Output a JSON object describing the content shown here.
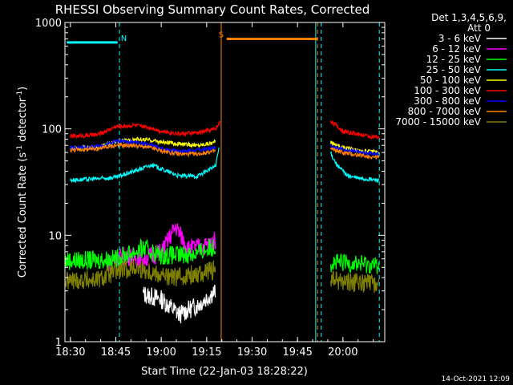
{
  "chart_data": {
    "type": "line",
    "title": "RHESSI Observing Summary Count Rates, Corrected",
    "xlabel": "Start Time (22-Jan-03 18:28:22)",
    "ylabel_main": "Corrected Count Rate (s",
    "ylabel_sup1": "-1",
    "ylabel_mid": " detector",
    "ylabel_sup2": "-1",
    "ylabel_end": ")",
    "yscale": "log",
    "ylim": [
      1,
      1000
    ],
    "xlim": [
      18.47,
      20.23
    ],
    "x_unit": "hours UT",
    "x_ticks": [
      {
        "value": 18.5,
        "label": "18:30"
      },
      {
        "value": 18.75,
        "label": "18:45"
      },
      {
        "value": 19.0,
        "label": "19:00"
      },
      {
        "value": 19.25,
        "label": "19:15"
      },
      {
        "value": 19.5,
        "label": "19:30"
      },
      {
        "value": 19.75,
        "label": "19:45"
      },
      {
        "value": 20.0,
        "label": "20:00"
      }
    ],
    "y_ticks": [
      {
        "value": 1,
        "label": "1"
      },
      {
        "value": 10,
        "label": "10"
      },
      {
        "value": 100,
        "label": "100"
      },
      {
        "value": 1000,
        "label": "1000"
      }
    ],
    "legend": {
      "placement": "right",
      "header1": "Det 1,3,4,5,6,9,",
      "header2": "Att 0"
    },
    "series": [
      {
        "name": "3 - 6 keV",
        "color": "#ffffff",
        "style": "noisy",
        "segments": [
          {
            "x": [
              18.9,
              19.0,
              19.1,
              19.2,
              19.3
            ],
            "y": [
              2.8,
              2.5,
              1.8,
              2.2,
              3.0
            ]
          }
        ]
      },
      {
        "name": "6 - 12 keV",
        "color": "#ff00ff",
        "style": "noisy",
        "segments": [
          {
            "x": [
              18.7,
              18.8,
              18.9,
              19.0,
              19.08,
              19.15,
              19.25,
              19.3
            ],
            "y": [
              5.5,
              6.5,
              6.0,
              7.0,
              12.0,
              7.5,
              8.0,
              9.0
            ]
          }
        ]
      },
      {
        "name": "12 - 25 keV",
        "color": "#00ff00",
        "style": "noisy",
        "segments": [
          {
            "x": [
              18.47,
              18.6,
              18.75,
              18.9,
              19.0,
              19.1,
              19.2,
              19.3
            ],
            "y": [
              5.8,
              5.8,
              6.0,
              7.5,
              6.5,
              6.5,
              6.8,
              8.0
            ]
          },
          {
            "x": [
              19.93,
              20.05,
              20.2
            ],
            "y": [
              5.5,
              5.5,
              5.2
            ]
          }
        ]
      },
      {
        "name": "25 - 50 keV",
        "color": "#00ffff",
        "style": "smooth",
        "segments": [
          {
            "x": [
              18.5,
              18.65,
              18.75,
              18.85,
              18.95,
              19.0,
              19.1,
              19.2,
              19.3,
              19.32
            ],
            "y": [
              33,
              34,
              35,
              40,
              46,
              42,
              36,
              36,
              45,
              70
            ]
          },
          {
            "x": [
              19.93,
              19.97,
              20.03,
              20.1,
              20.2
            ],
            "y": [
              60,
              45,
              36,
              34,
              33
            ]
          }
        ]
      },
      {
        "name": "50 - 100 keV",
        "color": "#ffff00",
        "style": "smooth",
        "segments": [
          {
            "x": [
              18.5,
              18.65,
              18.75,
              18.85,
              18.95,
              19.0,
              19.1,
              19.2,
              19.3
            ],
            "y": [
              66,
              67,
              75,
              80,
              78,
              75,
              72,
              70,
              75
            ]
          },
          {
            "x": [
              19.93,
              20.0,
              20.1,
              20.2
            ],
            "y": [
              75,
              67,
              62,
              60
            ]
          }
        ]
      },
      {
        "name": "100 - 300 keV",
        "color": "#ff0000",
        "style": "smooth",
        "segments": [
          {
            "x": [
              18.5,
              18.65,
              18.75,
              18.85,
              18.95,
              19.0,
              19.1,
              19.2,
              19.3,
              19.33
            ],
            "y": [
              85,
              88,
              105,
              108,
              102,
              95,
              90,
              92,
              100,
              120
            ]
          },
          {
            "x": [
              19.93,
              20.0,
              20.1,
              20.2
            ],
            "y": [
              120,
              95,
              88,
              82
            ]
          }
        ]
      },
      {
        "name": "300 - 800 keV",
        "color": "#0000ff",
        "style": "smooth",
        "segments": [
          {
            "x": [
              18.5,
              18.65,
              18.75,
              18.85,
              18.95,
              19.0,
              19.1,
              19.2,
              19.3
            ],
            "y": [
              66,
              68,
              76,
              75,
              70,
              65,
              62,
              63,
              66
            ]
          },
          {
            "x": [
              19.93,
              20.0,
              20.1,
              20.2
            ],
            "y": [
              70,
              64,
              60,
              58
            ]
          }
        ]
      },
      {
        "name": "800 - 7000 keV",
        "color": "#ff8000",
        "style": "smooth",
        "segments": [
          {
            "x": [
              18.5,
              18.65,
              18.75,
              18.85,
              18.95,
              19.0,
              19.1,
              19.2,
              19.3
            ],
            "y": [
              63,
              65,
              70,
              70,
              66,
              62,
              58,
              58,
              62
            ]
          },
          {
            "x": [
              19.93,
              20.0,
              20.1,
              20.2
            ],
            "y": [
              65,
              60,
              56,
              54
            ]
          }
        ]
      },
      {
        "name": "7000 - 15000 keV",
        "color": "#808000",
        "style": "noisy",
        "segments": [
          {
            "x": [
              18.47,
              18.55,
              18.65,
              18.75,
              18.85,
              18.95,
              19.05,
              19.15,
              19.25,
              19.3
            ],
            "y": [
              3.7,
              3.8,
              3.8,
              4.5,
              5.0,
              4.5,
              4.0,
              4.2,
              4.5,
              4.8
            ]
          },
          {
            "x": [
              19.93,
              20.05,
              20.2
            ],
            "y": [
              3.8,
              3.6,
              3.5
            ]
          }
        ]
      }
    ],
    "annotations": [
      {
        "label": "N",
        "color": "#00ffff",
        "bar_x": [
          18.48,
          18.76
        ],
        "y": 650
      },
      {
        "label": "S",
        "color": "#ff8000",
        "bar_x": [
          19.36,
          19.86
        ],
        "y": 700
      }
    ],
    "markers": {
      "cyan_dashed_x": [
        18.77,
        19.88,
        20.2
      ],
      "cyan_solid_x": [
        19.85
      ],
      "orange_dashed_x": [
        19.86
      ],
      "orange_solid_x": [
        19.33
      ]
    }
  },
  "footer_date": "14-Oct-2021 12:09"
}
